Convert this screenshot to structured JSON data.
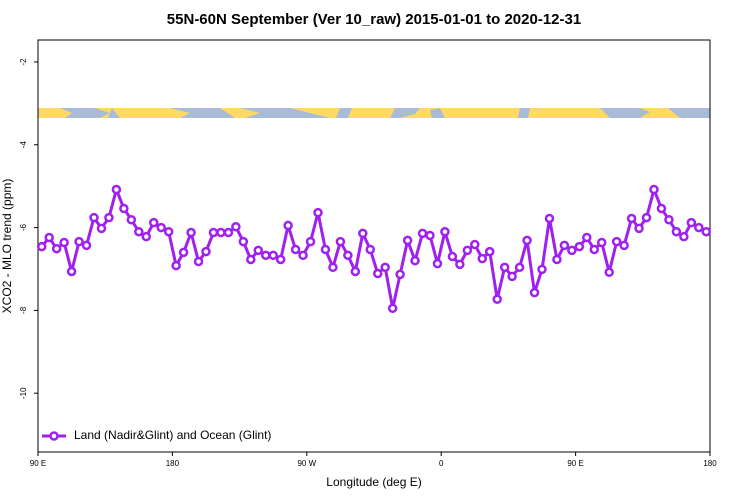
{
  "chart_data": {
    "type": "line",
    "title": "55N-60N September (Ver 10_raw)   2015-01-01 to 2020-12-31",
    "x_label": "Longitude (deg E)",
    "y_label": "XCO2 - MLO trend (ppm)",
    "xlim": [
      90,
      540
    ],
    "xticks": [
      {
        "value": 90,
        "label": "90 E"
      },
      {
        "value": 180,
        "label": "180"
      },
      {
        "value": 270,
        "label": "90 W"
      },
      {
        "value": 360,
        "label": "0"
      },
      {
        "value": 450,
        "label": "90 E"
      },
      {
        "value": 540,
        "label": "180"
      }
    ],
    "ylim": [
      -11.42,
      -1.47
    ],
    "yticks": [
      -2,
      -4,
      -6,
      -8,
      -10
    ],
    "legend": "bottom-left",
    "x": [
      92.5,
      97.5,
      102.5,
      107.5,
      112.5,
      117.5,
      122.5,
      127.5,
      132.5,
      137.5,
      142.5,
      147.5,
      152.5,
      157.5,
      162.5,
      167.5,
      172.5,
      177.5,
      182.5,
      187.5,
      192.5,
      197.5,
      202.5,
      207.5,
      212.5,
      217.5,
      222.5,
      227.5,
      232.5,
      237.5,
      242.5,
      247.5,
      252.5,
      257.5,
      262.5,
      267.5,
      272.5,
      277.5,
      282.5,
      287.5,
      292.5,
      297.5,
      302.5,
      307.5,
      312.5,
      317.5,
      322.5,
      327.5,
      332.5,
      337.5,
      342.5,
      347.5,
      352.5,
      357.5,
      362.5,
      367.5,
      372.5,
      377.5,
      382.5,
      387.5,
      392.5,
      397.5,
      402.5,
      407.5,
      412.5,
      417.5,
      422.5,
      427.5,
      432.5,
      437.5,
      442.5,
      447.5,
      452.5,
      457.5,
      462.5,
      467.5,
      472.5,
      477.5,
      482.5,
      487.5,
      492.5,
      497.5,
      502.5,
      507.5,
      512.5,
      517.5,
      522.5,
      527.5,
      532.5,
      537.5
    ],
    "series": [
      {
        "name": "Land (Nadir&Glint) and Ocean (Glint)",
        "color": "#a020f0",
        "values": [
          -6.46,
          -6.24,
          -6.51,
          -6.36,
          -7.06,
          -6.34,
          -6.43,
          -5.76,
          -6.02,
          -5.76,
          -5.08,
          -5.54,
          -5.81,
          -6.1,
          -6.22,
          -5.88,
          -6.0,
          -6.1,
          -6.92,
          -6.6,
          -6.12,
          -6.82,
          -6.58,
          -6.12,
          -6.12,
          -6.12,
          -5.98,
          -6.34,
          -6.77,
          -6.55,
          -6.67,
          -6.67,
          -6.77,
          -5.95,
          -6.53,
          -6.67,
          -6.34,
          -5.64,
          -6.53,
          -6.96,
          -6.34,
          -6.67,
          -7.06,
          -6.14,
          -6.53,
          -7.11,
          -6.96,
          -7.95,
          -7.13,
          -6.31,
          -6.8,
          -6.14,
          -6.19,
          -6.87,
          -6.1,
          -6.7,
          -6.89,
          -6.55,
          -6.41,
          -6.75,
          -6.58,
          -7.73,
          -6.96,
          -7.18,
          -6.96,
          -6.31,
          -7.57,
          -7.01,
          -5.78,
          -6.77,
          -6.43,
          -6.55,
          -6.46,
          -6.24,
          -6.53,
          -6.36,
          -7.08,
          -6.34,
          -6.43,
          -5.78,
          -6.02,
          -5.76,
          -5.08,
          -5.54,
          -5.81,
          -6.1,
          -6.22,
          -5.88,
          -6.0,
          -6.1
        ]
      }
    ]
  }
}
